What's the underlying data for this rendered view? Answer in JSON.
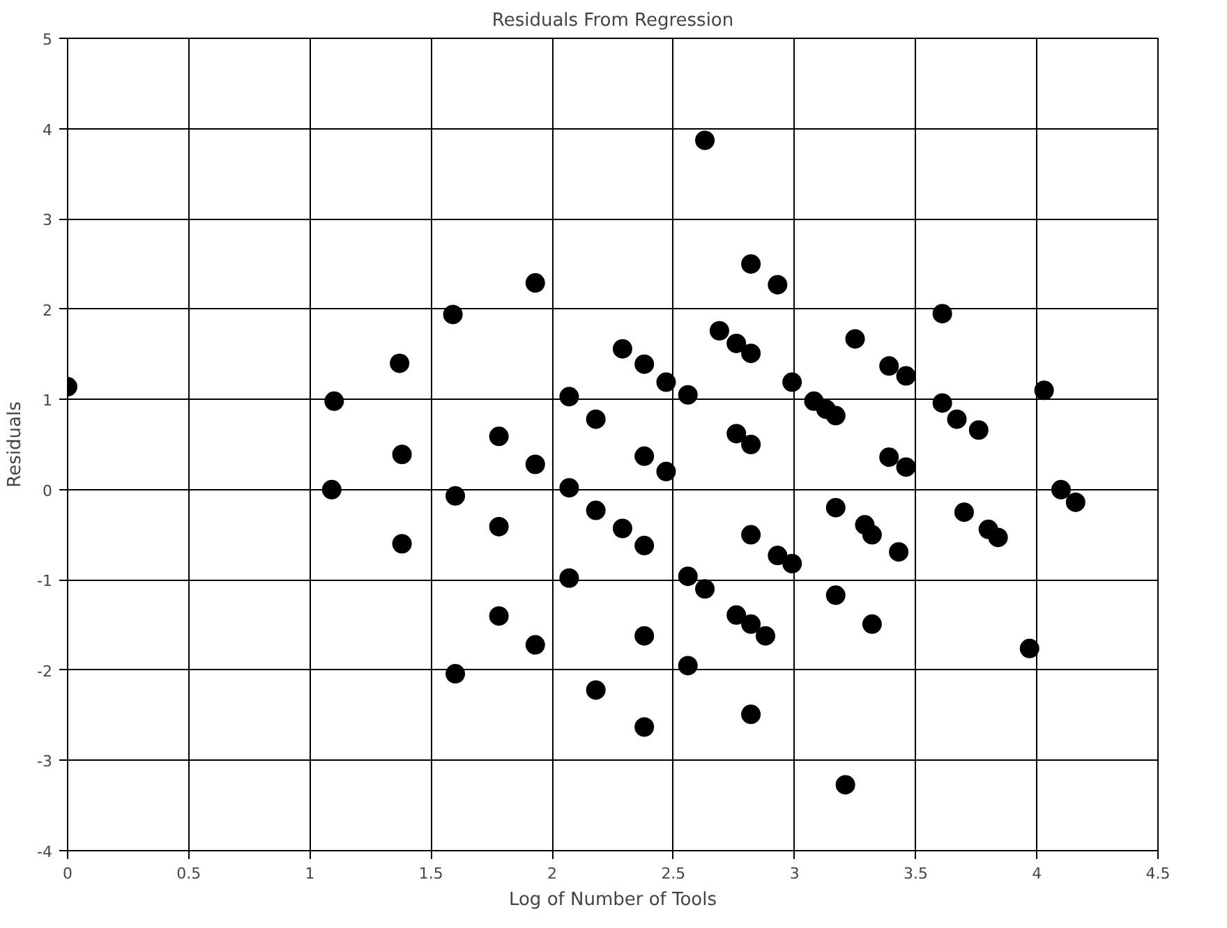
{
  "chart_data": {
    "type": "scatter",
    "title": "Residuals From Regression",
    "xlabel": "Log of Number of Tools",
    "ylabel": "Residuals",
    "x": [
      0,
      1.1,
      1.09,
      1.37,
      1.38,
      1.38,
      1.59,
      1.6,
      1.6,
      1.78,
      1.78,
      1.78,
      1.93,
      1.93,
      1.93,
      2.07,
      2.07,
      2.07,
      2.18,
      2.18,
      2.18,
      2.29,
      2.29,
      2.38,
      2.38,
      2.38,
      2.38,
      2.38,
      2.47,
      2.47,
      2.56,
      2.56,
      2.56,
      2.63,
      2.63,
      2.69,
      2.76,
      2.76,
      2.76,
      2.82,
      2.82,
      2.82,
      2.82,
      2.82,
      2.82,
      2.88,
      2.93,
      2.93,
      2.99,
      2.99,
      3.08,
      3.13,
      3.17,
      3.17,
      3.17,
      3.21,
      3.25,
      3.29,
      3.32,
      3.32,
      3.39,
      3.39,
      3.43,
      3.46,
      3.46,
      3.61,
      3.61,
      3.67,
      3.7,
      3.76,
      3.8,
      3.84,
      3.97,
      4.03,
      4.1,
      4.16
    ],
    "values": [
      1.14,
      0.98,
      0,
      1.4,
      0.39,
      -0.6,
      1.94,
      -0.07,
      -2.04,
      0.59,
      -0.41,
      -1.4,
      2.29,
      0.28,
      -1.72,
      1.03,
      0.02,
      -0.98,
      0.78,
      -0.23,
      -2.22,
      1.56,
      -0.43,
      1.39,
      0.37,
      -0.62,
      -1.62,
      -2.63,
      1.19,
      0.2,
      1.05,
      -0.96,
      -1.95,
      3.87,
      -1.1,
      1.76,
      1.62,
      0.62,
      -1.39,
      2.5,
      1.51,
      0.5,
      -0.5,
      -1.49,
      -2.49,
      -1.62,
      2.27,
      -0.73,
      1.19,
      -0.82,
      0.98,
      0.89,
      -0.2,
      0.82,
      -1.17,
      -3.27,
      1.67,
      -0.39,
      -0.5,
      -1.49,
      1.37,
      0.36,
      -0.69,
      1.26,
      0.25,
      1.95,
      0.96,
      0.78,
      -0.25,
      0.66,
      -0.44,
      -0.53,
      -1.76,
      1.1,
      0.0,
      -0.14
    ],
    "color": "#000000",
    "marker": "circle",
    "xlim": [
      0,
      4.5
    ],
    "xticks": [
      0,
      0.5,
      1,
      1.5,
      2,
      2.5,
      3,
      3.5,
      4,
      4.5
    ],
    "ylim": [
      -4,
      5
    ],
    "yticks": [
      -4,
      -3,
      -2,
      -1,
      0,
      1,
      2,
      3,
      4,
      5
    ],
    "grid": true
  }
}
